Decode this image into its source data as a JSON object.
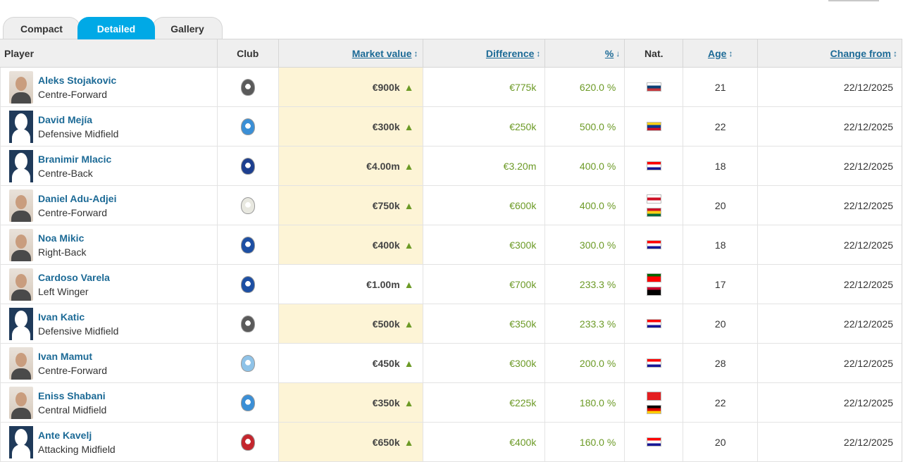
{
  "tabs": [
    "Compact",
    "Detailed",
    "Gallery"
  ],
  "headers": {
    "player": "Player",
    "club": "Club",
    "market_value": "Market value",
    "difference": "Difference",
    "percent": "%",
    "nat": "Nat.",
    "age": "Age",
    "change_from": "Change from"
  },
  "sort_icons": {
    "updown": "↕",
    "down": "↓"
  },
  "trend_icon": "arrow-up-icon",
  "colors": {
    "accent": "#00a9e6",
    "link": "#1c6a96",
    "positive": "#6c9a26",
    "highlight": "#fdf4d6"
  },
  "rows": [
    {
      "name": "Aleks Stojakovic",
      "position": "Centre-Forward",
      "club_crest": "#5a5a5a",
      "value": "€900k",
      "diff": "€775k",
      "pct": "620.0 %",
      "flags": [
        [
          "#ffffff",
          "#0c4076",
          "#c6363c"
        ]
      ],
      "age": "21",
      "change": "22/12/2025",
      "highlight": true,
      "photo": true
    },
    {
      "name": "David Mejía",
      "position": "Defensive Midfield",
      "club_crest": "#3b8fd6",
      "value": "€300k",
      "diff": "€250k",
      "pct": "500.0 %",
      "flags": [
        [
          "#fcd116",
          "#003893",
          "#ce1126"
        ]
      ],
      "age": "22",
      "change": "22/12/2025",
      "highlight": true,
      "photo": false
    },
    {
      "name": "Branimir Mlacic",
      "position": "Centre-Back",
      "club_crest": "#1d3f8f",
      "value": "€4.00m",
      "diff": "€3.20m",
      "pct": "400.0 %",
      "flags": [
        [
          "#ff0000",
          "#ffffff",
          "#171796"
        ]
      ],
      "age": "18",
      "change": "22/12/2025",
      "highlight": true,
      "photo": false
    },
    {
      "name": "Daniel Adu-Adjei",
      "position": "Centre-Forward",
      "club_crest": "#e8e8e0",
      "value": "€750k",
      "diff": "€600k",
      "pct": "400.0 %",
      "flags": [
        [
          "#ffffff",
          "#ce1124",
          "#ffffff"
        ],
        [
          "#ce1126",
          "#fcd116",
          "#006b3f"
        ]
      ],
      "age": "20",
      "change": "22/12/2025",
      "highlight": true,
      "photo": true
    },
    {
      "name": "Noa Mikic",
      "position": "Right-Back",
      "club_crest": "#1d4fa3",
      "value": "€400k",
      "diff": "€300k",
      "pct": "300.0 %",
      "flags": [
        [
          "#ff0000",
          "#ffffff",
          "#171796"
        ]
      ],
      "age": "18",
      "change": "22/12/2025",
      "highlight": true,
      "photo": true
    },
    {
      "name": "Cardoso Varela",
      "position": "Left Winger",
      "club_crest": "#1d4fa3",
      "value": "€1.00m",
      "diff": "€700k",
      "pct": "233.3 %",
      "flags": [
        [
          "#006600",
          "#ff0000",
          "#ff0000"
        ],
        [
          "#cc092f",
          "#000000",
          "#000000"
        ]
      ],
      "age": "17",
      "change": "22/12/2025",
      "highlight": false,
      "photo": true
    },
    {
      "name": "Ivan Katic",
      "position": "Defensive Midfield",
      "club_crest": "#5a5a5a",
      "value": "€500k",
      "diff": "€350k",
      "pct": "233.3 %",
      "flags": [
        [
          "#ff0000",
          "#ffffff",
          "#171796"
        ]
      ],
      "age": "20",
      "change": "22/12/2025",
      "highlight": true,
      "photo": false
    },
    {
      "name": "Ivan Mamut",
      "position": "Centre-Forward",
      "club_crest": "#8fc3e8",
      "value": "€450k",
      "diff": "€300k",
      "pct": "200.0 %",
      "flags": [
        [
          "#ff0000",
          "#ffffff",
          "#171796"
        ]
      ],
      "age": "28",
      "change": "22/12/2025",
      "highlight": false,
      "photo": true
    },
    {
      "name": "Eniss Shabani",
      "position": "Central Midfield",
      "club_crest": "#3b8fd6",
      "value": "€350k",
      "diff": "€225k",
      "pct": "180.0 %",
      "flags": [
        [
          "#e41e20",
          "#e41e20",
          "#e41e20"
        ],
        [
          "#000000",
          "#dd0000",
          "#ffce00"
        ]
      ],
      "age": "22",
      "change": "22/12/2025",
      "highlight": true,
      "photo": true
    },
    {
      "name": "Ante Kavelj",
      "position": "Attacking Midfield",
      "club_crest": "#c4262e",
      "value": "€650k",
      "diff": "€400k",
      "pct": "160.0 %",
      "flags": [
        [
          "#ff0000",
          "#ffffff",
          "#171796"
        ]
      ],
      "age": "20",
      "change": "22/12/2025",
      "highlight": true,
      "photo": false
    }
  ]
}
